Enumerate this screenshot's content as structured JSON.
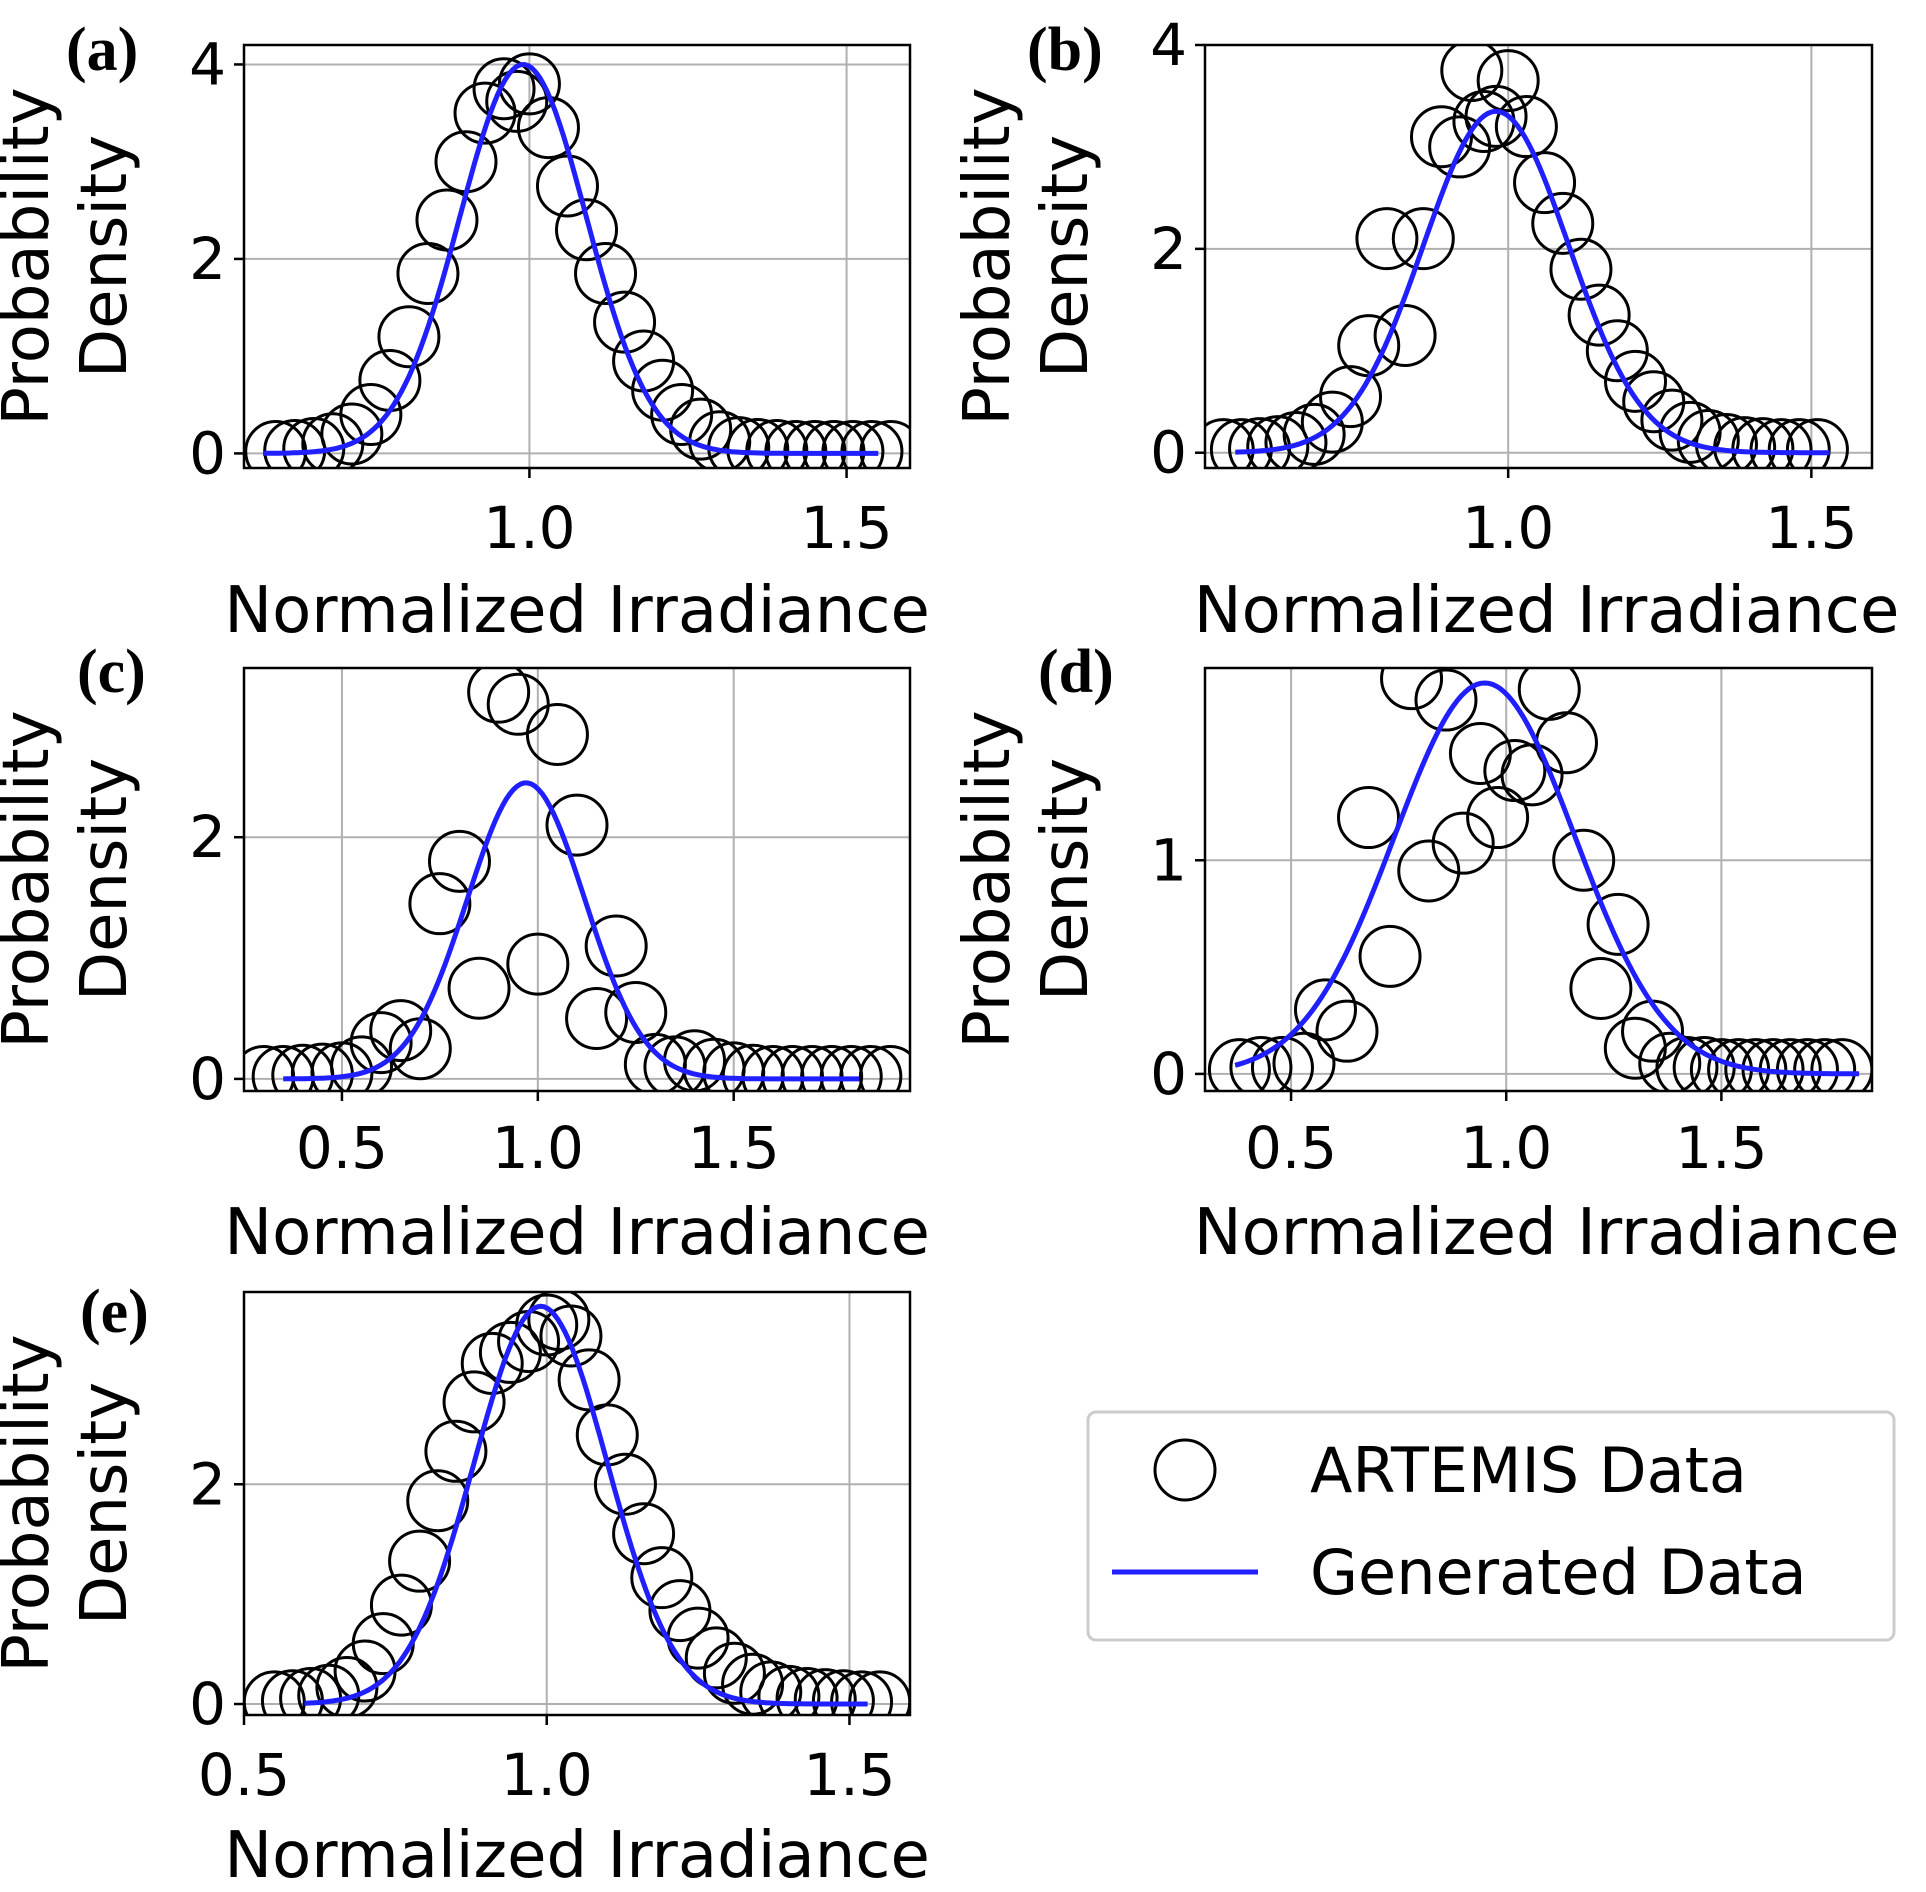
{
  "figure": {
    "legend": {
      "items": [
        {
          "label": "ARTEMIS Data",
          "marker": "open-circle",
          "color": "#000000"
        },
        {
          "label": "Generated Data",
          "marker": "line",
          "color": "#1f1fff"
        }
      ]
    }
  },
  "chart_data": [
    {
      "panel": "(a)",
      "type": "scatter",
      "xlabel": "Normalized Irradiance",
      "ylabel_lines": [
        "Probability",
        "Density"
      ],
      "xlim": [
        0.55,
        1.6
      ],
      "ylim": [
        -0.15,
        4.2
      ],
      "xticks": [
        1.0,
        1.5
      ],
      "xtick_labels": [
        "1.0",
        "1.5"
      ],
      "yticks": [
        0,
        2,
        4
      ],
      "ytick_labels": [
        "0",
        "2",
        "4"
      ],
      "grid": true,
      "scatter": {
        "name": "ARTEMIS Data",
        "x": [
          0.6,
          0.63,
          0.66,
          0.69,
          0.72,
          0.75,
          0.78,
          0.81,
          0.84,
          0.87,
          0.9,
          0.93,
          0.96,
          0.98,
          1.0,
          1.03,
          1.06,
          1.09,
          1.12,
          1.15,
          1.18,
          1.21,
          1.24,
          1.27,
          1.3,
          1.33,
          1.36,
          1.39,
          1.42,
          1.45,
          1.48,
          1.51,
          1.54,
          1.57
        ],
        "y": [
          0.02,
          0.03,
          0.05,
          0.1,
          0.2,
          0.4,
          0.75,
          1.2,
          1.85,
          2.4,
          3.0,
          3.5,
          3.75,
          3.62,
          3.8,
          3.35,
          2.75,
          2.3,
          1.85,
          1.35,
          0.95,
          0.65,
          0.4,
          0.25,
          0.12,
          0.06,
          0.04,
          0.03,
          0.02,
          0.02,
          0.02,
          0.02,
          0.02,
          0.02
        ]
      },
      "curve": {
        "name": "Generated Data",
        "mean": 0.99,
        "std": 0.1,
        "peak": 4.0,
        "x_range": [
          0.58,
          1.55
        ]
      }
    },
    {
      "panel": "(b)",
      "type": "scatter",
      "xlabel": "Normalized Irradiance",
      "ylabel_lines": [
        "Probability",
        "Density"
      ],
      "xlim": [
        0.5,
        1.6
      ],
      "ylim": [
        -0.15,
        4.0
      ],
      "xticks": [
        1.0,
        1.5
      ],
      "xtick_labels": [
        "1.0",
        "1.5"
      ],
      "yticks": [
        0,
        2,
        4
      ],
      "ytick_labels": [
        "0",
        "2",
        "4"
      ],
      "grid": true,
      "scatter": {
        "name": "ARTEMIS Data",
        "x": [
          0.53,
          0.56,
          0.59,
          0.62,
          0.65,
          0.68,
          0.71,
          0.74,
          0.77,
          0.8,
          0.83,
          0.86,
          0.89,
          0.92,
          0.94,
          0.96,
          0.98,
          1.0,
          1.03,
          1.06,
          1.09,
          1.12,
          1.15,
          1.18,
          1.21,
          1.24,
          1.27,
          1.3,
          1.33,
          1.36,
          1.39,
          1.42,
          1.45,
          1.48,
          1.51
        ],
        "y": [
          0.03,
          0.03,
          0.04,
          0.06,
          0.1,
          0.18,
          0.3,
          0.55,
          1.05,
          2.1,
          1.15,
          2.1,
          3.1,
          3.0,
          3.75,
          3.25,
          3.3,
          3.65,
          3.2,
          2.65,
          2.25,
          1.8,
          1.35,
          1.0,
          0.7,
          0.5,
          0.32,
          0.2,
          0.12,
          0.08,
          0.05,
          0.04,
          0.03,
          0.03,
          0.03
        ]
      },
      "curve": {
        "name": "Generated Data",
        "mean": 0.98,
        "std": 0.12,
        "peak": 3.35,
        "x_range": [
          0.55,
          1.53
        ]
      }
    },
    {
      "panel": "(c)",
      "type": "scatter",
      "xlabel": "Normalized Irradiance",
      "ylabel_lines": [
        "Probability",
        "Density"
      ],
      "xlim": [
        0.25,
        1.95
      ],
      "ylim": [
        -0.1,
        3.4
      ],
      "xticks": [
        0.5,
        1.0,
        1.5
      ],
      "xtick_labels": [
        "0.5",
        "1.0",
        "1.5"
      ],
      "yticks": [
        0,
        2
      ],
      "ytick_labels": [
        "0",
        "2"
      ],
      "grid": true,
      "scatter": {
        "name": "ARTEMIS Data",
        "x": [
          0.3,
          0.35,
          0.4,
          0.45,
          0.5,
          0.55,
          0.6,
          0.65,
          0.7,
          0.75,
          0.8,
          0.85,
          0.9,
          0.95,
          1.0,
          1.05,
          1.1,
          1.15,
          1.2,
          1.25,
          1.3,
          1.35,
          1.4,
          1.45,
          1.5,
          1.55,
          1.6,
          1.65,
          1.7,
          1.75,
          1.8,
          1.85,
          1.9
        ],
        "y": [
          0.02,
          0.02,
          0.03,
          0.04,
          0.05,
          0.1,
          0.3,
          0.4,
          0.25,
          1.45,
          1.8,
          0.75,
          3.2,
          3.1,
          0.95,
          2.85,
          2.1,
          0.5,
          1.1,
          0.55,
          0.12,
          0.1,
          0.15,
          0.08,
          0.05,
          0.03,
          0.02,
          0.02,
          0.02,
          0.02,
          0.02,
          0.02,
          0.02
        ]
      },
      "curve": {
        "name": "Generated Data",
        "mean": 0.97,
        "std": 0.15,
        "peak": 2.45,
        "x_range": [
          0.35,
          1.82
        ]
      }
    },
    {
      "panel": "(d)",
      "type": "scatter",
      "xlabel": "Normalized Irradiance",
      "ylabel_lines": [
        "Probability",
        "Density"
      ],
      "xlim": [
        0.3,
        1.85
      ],
      "ylim": [
        -0.08,
        1.9
      ],
      "xticks": [
        0.5,
        1.0,
        1.5
      ],
      "xtick_labels": [
        "0.5",
        "1.0",
        "1.5"
      ],
      "yticks": [
        0,
        1
      ],
      "ytick_labels": [
        "0",
        "1"
      ],
      "grid": true,
      "scatter": {
        "name": "ARTEMIS Data",
        "x": [
          0.38,
          0.43,
          0.48,
          0.53,
          0.58,
          0.63,
          0.68,
          0.73,
          0.78,
          0.82,
          0.86,
          0.9,
          0.94,
          0.98,
          1.02,
          1.06,
          1.1,
          1.14,
          1.18,
          1.22,
          1.26,
          1.3,
          1.34,
          1.38,
          1.42,
          1.46,
          1.5,
          1.54,
          1.58,
          1.62,
          1.66,
          1.7,
          1.74,
          1.78
        ],
        "y": [
          0.02,
          0.03,
          0.03,
          0.05,
          0.3,
          0.2,
          1.2,
          0.55,
          1.85,
          0.95,
          1.75,
          1.08,
          1.5,
          1.2,
          1.42,
          1.4,
          1.8,
          1.55,
          1.0,
          0.4,
          0.7,
          0.12,
          0.2,
          0.05,
          0.03,
          0.03,
          0.02,
          0.02,
          0.02,
          0.02,
          0.02,
          0.02,
          0.02,
          0.02
        ]
      },
      "curve": {
        "name": "Generated Data",
        "mean": 0.95,
        "std": 0.21,
        "peak": 1.83,
        "x_range": [
          0.37,
          1.82
        ]
      }
    },
    {
      "panel": "(e)",
      "type": "scatter",
      "xlabel": "Normalized Irradiance",
      "ylabel_lines": [
        "Probability",
        "Density"
      ],
      "xlim": [
        0.5,
        1.6
      ],
      "ylim": [
        -0.1,
        3.75
      ],
      "xticks": [
        0.5,
        1.0,
        1.5
      ],
      "xtick_labels": [
        "0.5",
        "1.0",
        "1.5"
      ],
      "yticks": [
        0,
        2
      ],
      "ytick_labels": [
        "0",
        "2"
      ],
      "grid": true,
      "scatter": {
        "name": "ARTEMIS Data",
        "x": [
          0.55,
          0.58,
          0.61,
          0.64,
          0.67,
          0.7,
          0.73,
          0.76,
          0.79,
          0.82,
          0.85,
          0.88,
          0.91,
          0.94,
          0.97,
          1.0,
          1.02,
          1.04,
          1.07,
          1.1,
          1.13,
          1.16,
          1.19,
          1.22,
          1.25,
          1.28,
          1.31,
          1.34,
          1.37,
          1.4,
          1.43,
          1.46,
          1.49,
          1.52,
          1.55
        ],
        "y": [
          0.02,
          0.03,
          0.05,
          0.08,
          0.15,
          0.3,
          0.55,
          0.9,
          1.3,
          1.85,
          2.3,
          2.75,
          3.1,
          3.2,
          3.3,
          3.45,
          3.5,
          3.35,
          2.95,
          2.45,
          2.0,
          1.55,
          1.15,
          0.85,
          0.6,
          0.42,
          0.28,
          0.18,
          0.11,
          0.07,
          0.05,
          0.04,
          0.03,
          0.02,
          0.02
        ]
      },
      "curve": {
        "name": "Generated Data",
        "mean": 0.99,
        "std": 0.11,
        "peak": 3.62,
        "x_range": [
          0.6,
          1.53
        ]
      }
    }
  ]
}
